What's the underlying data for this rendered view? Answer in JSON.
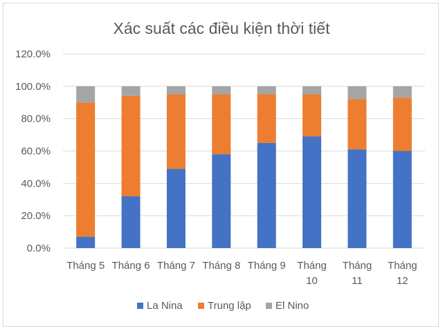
{
  "chart_data": {
    "type": "bar",
    "stacked": true,
    "title": "Xác suất các điều kiện thời tiết",
    "categories": [
      "Tháng 5",
      "Tháng 6",
      "Tháng 7",
      "Tháng 8",
      "Tháng 9",
      "Tháng 10",
      "Tháng 11",
      "Tháng 12"
    ],
    "category_lines": [
      [
        "Tháng 5"
      ],
      [
        "Tháng 6"
      ],
      [
        "Tháng 7"
      ],
      [
        "Tháng 8"
      ],
      [
        "Tháng 9"
      ],
      [
        "Tháng",
        "10"
      ],
      [
        "Tháng",
        "11"
      ],
      [
        "Tháng",
        "12"
      ]
    ],
    "series": [
      {
        "name": "La Nina",
        "color": "#4472c4",
        "values": [
          7,
          32,
          49,
          58,
          65,
          69,
          61,
          60
        ]
      },
      {
        "name": "Trung lập",
        "color": "#ed7d31",
        "values": [
          83,
          62,
          46,
          37,
          30,
          26,
          31,
          33
        ]
      },
      {
        "name": "El Nino",
        "color": "#a5a5a5",
        "values": [
          10,
          6,
          5,
          5,
          5,
          5,
          8,
          7
        ]
      }
    ],
    "ylim": [
      0,
      120
    ],
    "yticks": [
      0,
      20,
      40,
      60,
      80,
      100,
      120
    ],
    "ytick_labels": [
      "0.0%",
      "20.0%",
      "40.0%",
      "60.0%",
      "80.0%",
      "100.0%",
      "120.0%"
    ],
    "xlabel": "",
    "ylabel": "",
    "grid": true,
    "gridline_color": "#d9d9d9",
    "legend": "bottom"
  }
}
